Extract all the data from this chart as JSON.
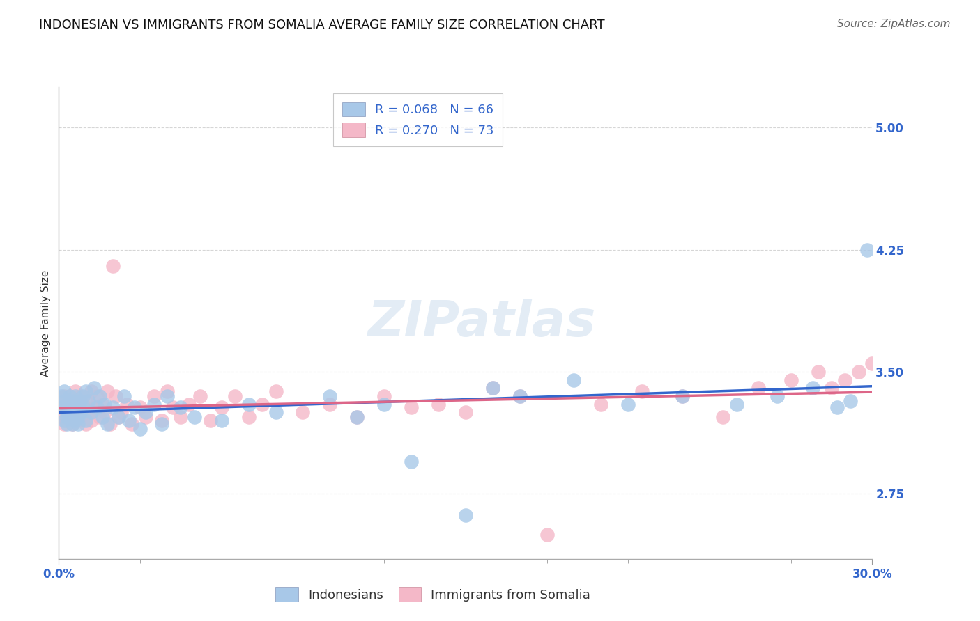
{
  "title": "INDONESIAN VS IMMIGRANTS FROM SOMALIA AVERAGE FAMILY SIZE CORRELATION CHART",
  "source": "Source: ZipAtlas.com",
  "ylabel": "Average Family Size",
  "xlim": [
    0.0,
    0.3
  ],
  "ylim": [
    2.35,
    5.25
  ],
  "yticks": [
    2.75,
    3.5,
    4.25,
    5.0
  ],
  "xticks": [
    0.0,
    0.3
  ],
  "xtick_labels": [
    "0.0%",
    "30.0%"
  ],
  "background_color": "#ffffff",
  "grid_color": "#cccccc",
  "blue_color": "#a8c8e8",
  "pink_color": "#f4b8c8",
  "blue_line_color": "#3366cc",
  "pink_line_color": "#dd6688",
  "legend1_label": "R = 0.068   N = 66",
  "legend2_label": "R = 0.270   N = 73",
  "legend_group1": "Indonesians",
  "legend_group2": "Immigrants from Somalia",
  "indonesian_x": [
    0.001,
    0.001,
    0.002,
    0.002,
    0.002,
    0.003,
    0.003,
    0.003,
    0.003,
    0.004,
    0.004,
    0.004,
    0.005,
    0.005,
    0.005,
    0.006,
    0.006,
    0.006,
    0.007,
    0.007,
    0.007,
    0.008,
    0.008,
    0.009,
    0.009,
    0.01,
    0.01,
    0.011,
    0.012,
    0.013,
    0.014,
    0.015,
    0.016,
    0.017,
    0.018,
    0.02,
    0.022,
    0.024,
    0.026,
    0.028,
    0.03,
    0.032,
    0.035,
    0.038,
    0.04,
    0.045,
    0.05,
    0.06,
    0.07,
    0.08,
    0.1,
    0.11,
    0.12,
    0.13,
    0.15,
    0.16,
    0.17,
    0.19,
    0.21,
    0.23,
    0.25,
    0.265,
    0.278,
    0.287,
    0.292,
    0.298
  ],
  "indonesian_y": [
    3.28,
    3.35,
    3.2,
    3.32,
    3.38,
    3.25,
    3.18,
    3.3,
    3.22,
    3.35,
    3.28,
    3.22,
    3.18,
    3.32,
    3.25,
    3.2,
    3.35,
    3.28,
    3.22,
    3.3,
    3.18,
    3.32,
    3.25,
    3.35,
    3.28,
    3.2,
    3.38,
    3.32,
    3.25,
    3.4,
    3.28,
    3.35,
    3.22,
    3.3,
    3.18,
    3.28,
    3.22,
    3.35,
    3.2,
    3.28,
    3.15,
    3.25,
    3.3,
    3.18,
    3.35,
    3.28,
    3.22,
    3.2,
    3.3,
    3.25,
    3.35,
    3.22,
    3.3,
    2.95,
    2.62,
    3.4,
    3.35,
    3.45,
    3.3,
    3.35,
    3.3,
    3.35,
    3.4,
    3.28,
    3.32,
    4.25
  ],
  "somalia_x": [
    0.001,
    0.001,
    0.002,
    0.002,
    0.003,
    0.003,
    0.003,
    0.004,
    0.004,
    0.005,
    0.005,
    0.005,
    0.006,
    0.006,
    0.007,
    0.007,
    0.008,
    0.008,
    0.009,
    0.01,
    0.01,
    0.011,
    0.012,
    0.012,
    0.013,
    0.014,
    0.015,
    0.016,
    0.017,
    0.018,
    0.019,
    0.02,
    0.021,
    0.022,
    0.023,
    0.025,
    0.027,
    0.03,
    0.032,
    0.035,
    0.038,
    0.04,
    0.042,
    0.045,
    0.048,
    0.052,
    0.056,
    0.06,
    0.065,
    0.07,
    0.075,
    0.08,
    0.09,
    0.1,
    0.11,
    0.12,
    0.13,
    0.14,
    0.15,
    0.16,
    0.17,
    0.18,
    0.2,
    0.215,
    0.23,
    0.245,
    0.258,
    0.27,
    0.28,
    0.285,
    0.29,
    0.295,
    0.3
  ],
  "somalia_y": [
    3.28,
    3.22,
    3.35,
    3.18,
    3.3,
    3.25,
    3.2,
    3.35,
    3.28,
    3.22,
    3.18,
    3.32,
    3.25,
    3.38,
    3.2,
    3.28,
    3.35,
    3.22,
    3.3,
    3.18,
    3.32,
    3.25,
    3.38,
    3.2,
    3.28,
    3.35,
    3.22,
    3.3,
    3.25,
    3.38,
    3.18,
    4.15,
    3.35,
    3.22,
    3.25,
    3.3,
    3.18,
    3.28,
    3.22,
    3.35,
    3.2,
    3.38,
    3.28,
    3.22,
    3.3,
    3.35,
    3.2,
    3.28,
    3.35,
    3.22,
    3.3,
    3.38,
    3.25,
    3.3,
    3.22,
    3.35,
    3.28,
    3.3,
    3.25,
    3.4,
    3.35,
    2.5,
    3.3,
    3.38,
    3.35,
    3.22,
    3.4,
    3.45,
    3.5,
    3.4,
    3.45,
    3.5,
    3.55
  ],
  "title_fontsize": 13,
  "axis_label_fontsize": 11,
  "tick_fontsize": 12,
  "source_fontsize": 11,
  "legend_fontsize": 13
}
